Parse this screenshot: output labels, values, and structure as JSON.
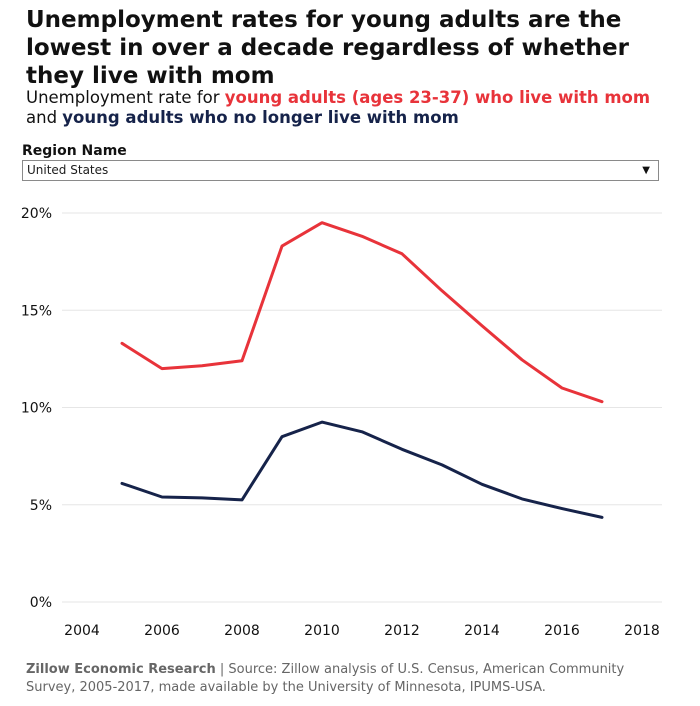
{
  "title": "Unemployment rates for young adults are the lowest in over a decade regardless of whether they live with mom",
  "subtitle": {
    "prefix": "Unemployment rate for ",
    "highlight_red": "young adults (ages 23-37) who live with mom",
    "middle": " and ",
    "highlight_navy": "young adults who no longer live with mom"
  },
  "region": {
    "label": "Region Name",
    "selected": "United States",
    "arrow_icon": "▼"
  },
  "colors": {
    "with_mom": "#e8333a",
    "without_mom": "#16234a",
    "grid": "#e6e6e6"
  },
  "chart_data": {
    "type": "line",
    "x": [
      2005,
      2006,
      2007,
      2008,
      2009,
      2010,
      2011,
      2012,
      2013,
      2014,
      2015,
      2016,
      2017
    ],
    "series": [
      {
        "key": "with_mom",
        "values": [
          13.3,
          12.0,
          12.15,
          12.4,
          18.3,
          19.5,
          18.8,
          17.9,
          16.0,
          14.2,
          12.45,
          11.0,
          10.3
        ]
      },
      {
        "key": "without_mom",
        "values": [
          6.1,
          5.4,
          5.35,
          5.25,
          8.5,
          9.25,
          8.75,
          7.85,
          7.05,
          6.05,
          5.3,
          4.8,
          4.35
        ]
      }
    ],
    "xlim": [
      2003.5,
      2018.5
    ],
    "ylim": [
      0,
      20
    ],
    "x_ticks": [
      2004,
      2006,
      2008,
      2010,
      2012,
      2014,
      2016,
      2018
    ],
    "y_ticks": [
      0,
      5,
      10,
      15,
      20
    ],
    "y_tick_labels": [
      "0%",
      "5%",
      "10%",
      "15%",
      "20%"
    ],
    "grid": "horizontal"
  },
  "footer": {
    "org": "Zillow Economic Research",
    "separator": " | ",
    "source": "Source: Zillow analysis of U.S. Census, American Community Survey, 2005-2017, made available by the University of Minnesota, IPUMS-USA."
  }
}
